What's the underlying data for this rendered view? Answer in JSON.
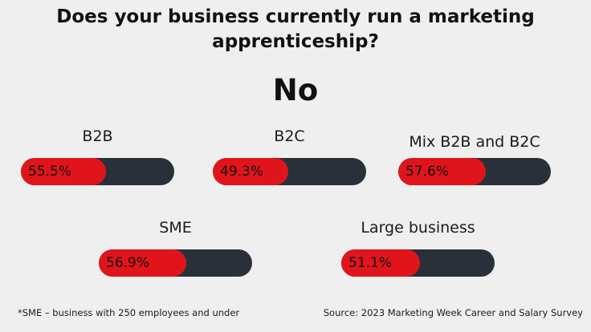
{
  "chart_data": {
    "type": "bar",
    "title": "Does your business currently run a marketing apprenticeship?",
    "subtitle": "No",
    "unit": "%",
    "xlim": [
      0,
      100
    ],
    "categories": [
      "B2B",
      "B2C",
      "Mix B2B and B2C",
      "SME",
      "Large business"
    ],
    "values": [
      55.5,
      49.3,
      57.6,
      56.9,
      51.1
    ],
    "value_labels": [
      "55.5%",
      "49.3%",
      "57.6%",
      "56.9%",
      "51.1%"
    ],
    "colors": {
      "fill": "#e0151b",
      "track": "#2a3039"
    }
  },
  "footnote": "*SME – business with 250 employees and under",
  "source": "Source: 2023 Marketing Week Career and Salary Survey"
}
